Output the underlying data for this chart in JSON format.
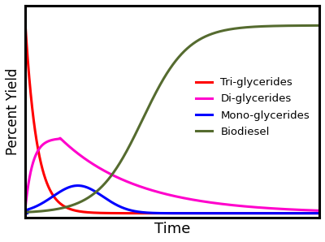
{
  "title": "",
  "xlabel": "Time",
  "ylabel": "Percent Yield",
  "xlabel_fontsize": 13,
  "ylabel_fontsize": 12,
  "background_color": "#ffffff",
  "line_width": 2.2,
  "colors": {
    "triglycerides": "#ff0000",
    "diglycerides": "#ff00cc",
    "monoglycerides": "#0000ff",
    "biodiesel": "#556b2f"
  },
  "legend_labels": [
    "Tri-glycerides",
    "Di-glycerides",
    "Mono-glycerides",
    "Biodiesel"
  ],
  "legend_fontsize": 9.5,
  "axis_linewidth": 2.2,
  "xlim": [
    0,
    10
  ],
  "ylim": [
    -0.02,
    1.05
  ]
}
